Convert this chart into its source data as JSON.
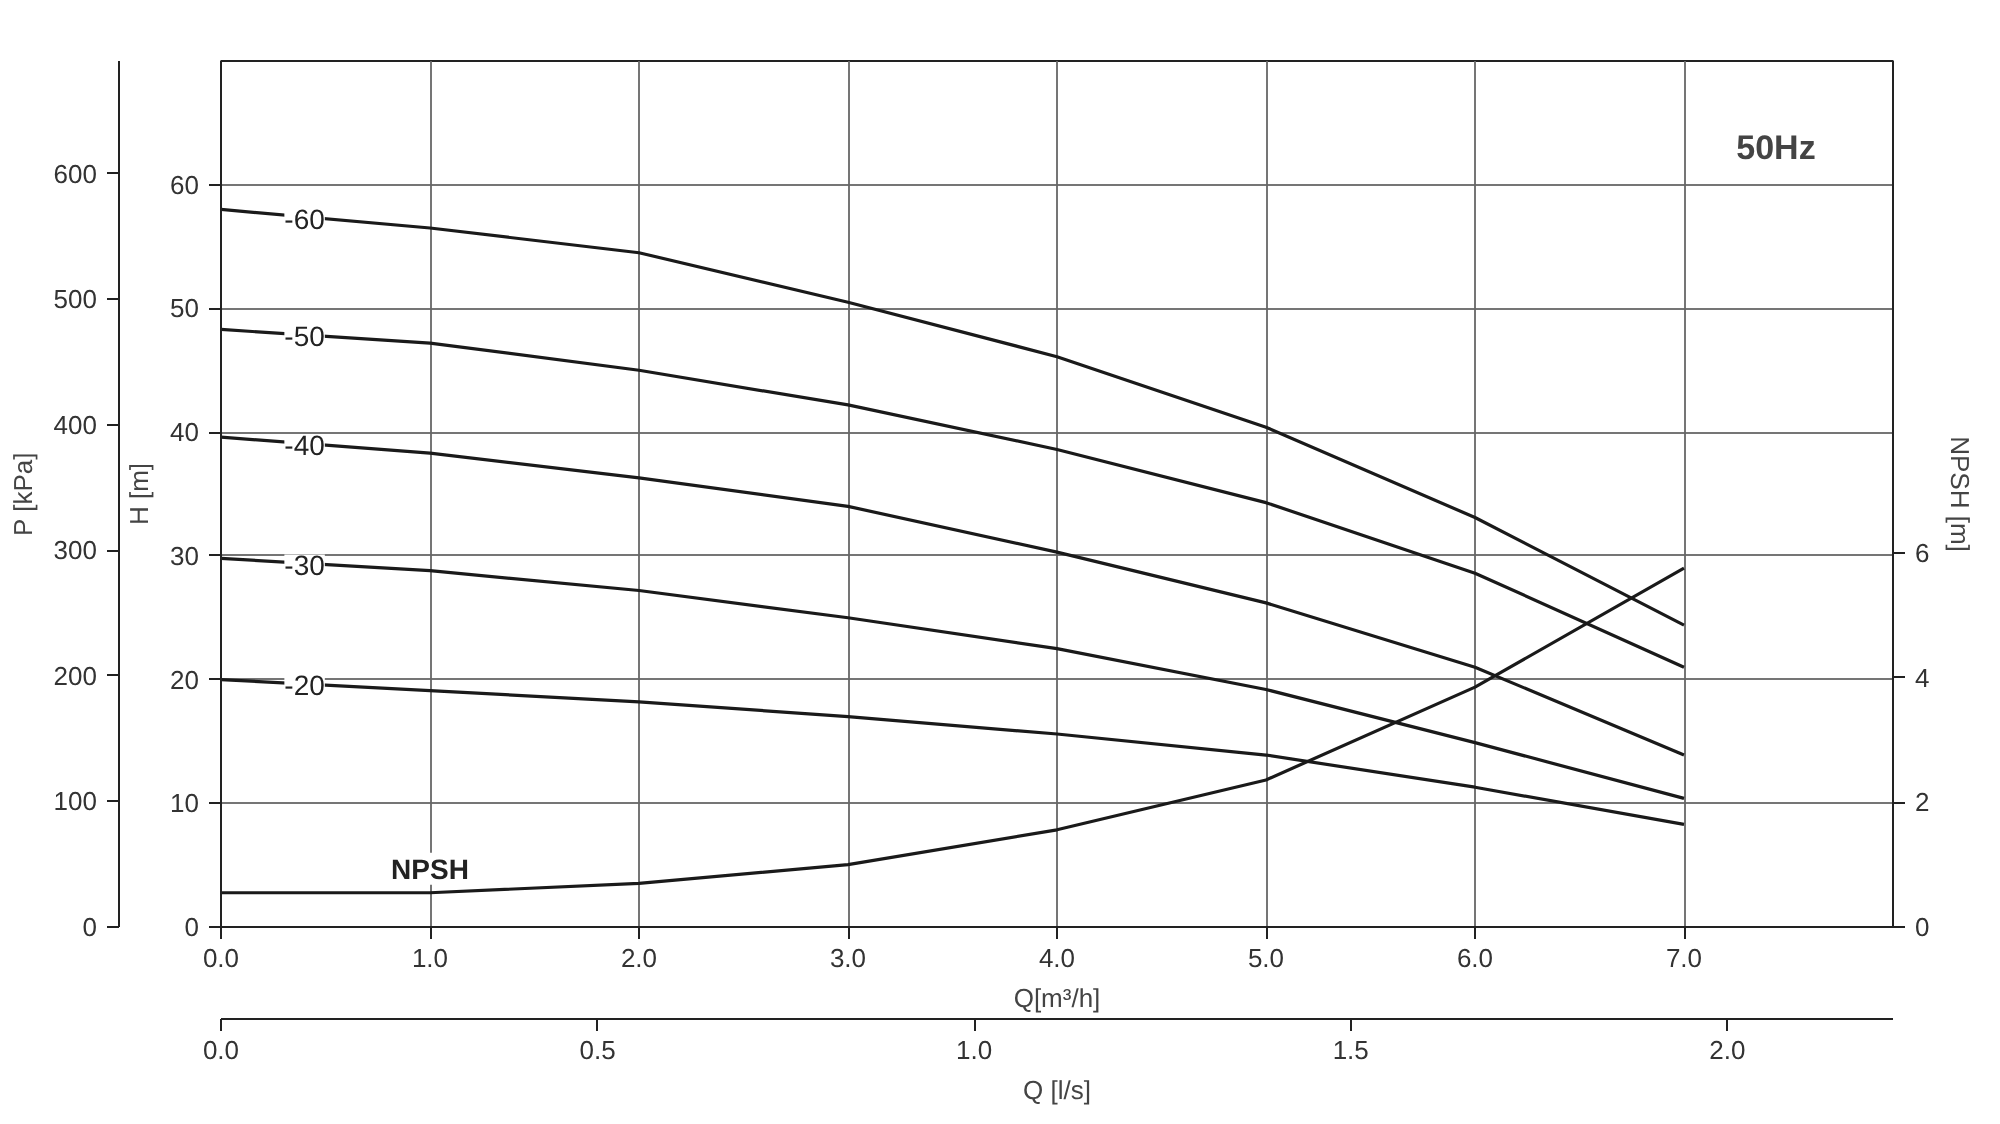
{
  "chart_data": {
    "type": "line",
    "title": "50Hz",
    "xlabel": "Q[m³/h]",
    "x2label": "Q [l/s]",
    "ylabel": "H [m]",
    "y2label": "P [kPa]",
    "y3label": "NPSH [m]",
    "x": [
      0,
      1,
      2,
      3,
      4,
      5,
      6,
      7
    ],
    "series": [
      {
        "name": "-60",
        "color": "#1a1a1a",
        "values": [
          58,
          56.5,
          54.5,
          50.5,
          46.1,
          40.4,
          33.1,
          24.4
        ]
      },
      {
        "name": "-50",
        "color": "#1a1a1a",
        "values": [
          48.3,
          47.2,
          45,
          42.2,
          38.6,
          34.3,
          28.6,
          21
        ]
      },
      {
        "name": "-40",
        "color": "#1a1a1a",
        "values": [
          39.6,
          38.3,
          36.3,
          34,
          30.3,
          26.2,
          21,
          13.9
        ]
      },
      {
        "name": "-30",
        "color": "#1a1a1a",
        "values": [
          29.8,
          28.8,
          27.2,
          25,
          22.5,
          19.2,
          14.9,
          10.4
        ]
      },
      {
        "name": "-20",
        "color": "#1a1a1a",
        "values": [
          20,
          19.1,
          18.2,
          17,
          15.6,
          13.9,
          11.3,
          8.3
        ]
      },
      {
        "name": "NPSH",
        "color": "#1a1a1a",
        "axis": "y3",
        "values": [
          0.55,
          0.55,
          0.7,
          1.0,
          1.56,
          2.36,
          3.85,
          5.76
        ]
      }
    ],
    "xlim": [
      0,
      8
    ],
    "xticks": [
      {
        "value": 0,
        "label": "0.0"
      },
      {
        "value": 1,
        "label": "1.0"
      },
      {
        "value": 2,
        "label": "2.0"
      },
      {
        "value": 3,
        "label": "3.0"
      },
      {
        "value": 4,
        "label": "4.0"
      },
      {
        "value": 5,
        "label": "5.0"
      },
      {
        "value": 6,
        "label": "6.0"
      },
      {
        "value": 7,
        "label": "7.0"
      }
    ],
    "x2lim": [
      0,
      2.22
    ],
    "x2ticks": [
      {
        "value": 0,
        "label": "0.0"
      },
      {
        "value": 0.5,
        "label": "0.5"
      },
      {
        "value": 1,
        "label": "1.0"
      },
      {
        "value": 1.5,
        "label": "1.5"
      },
      {
        "value": 2,
        "label": "2.0"
      }
    ],
    "ylim": [
      0,
      70
    ],
    "yticks": [
      0,
      10,
      20,
      30,
      40,
      50,
      60
    ],
    "y2lim": [
      0,
      690
    ],
    "y2ticks": [
      0,
      100,
      200,
      300,
      400,
      500,
      600
    ],
    "y3lim": [
      0,
      13.9
    ],
    "y3ticks": [
      0,
      2,
      4,
      6
    ],
    "grid": true,
    "marker": "none",
    "line_style": "solid"
  }
}
